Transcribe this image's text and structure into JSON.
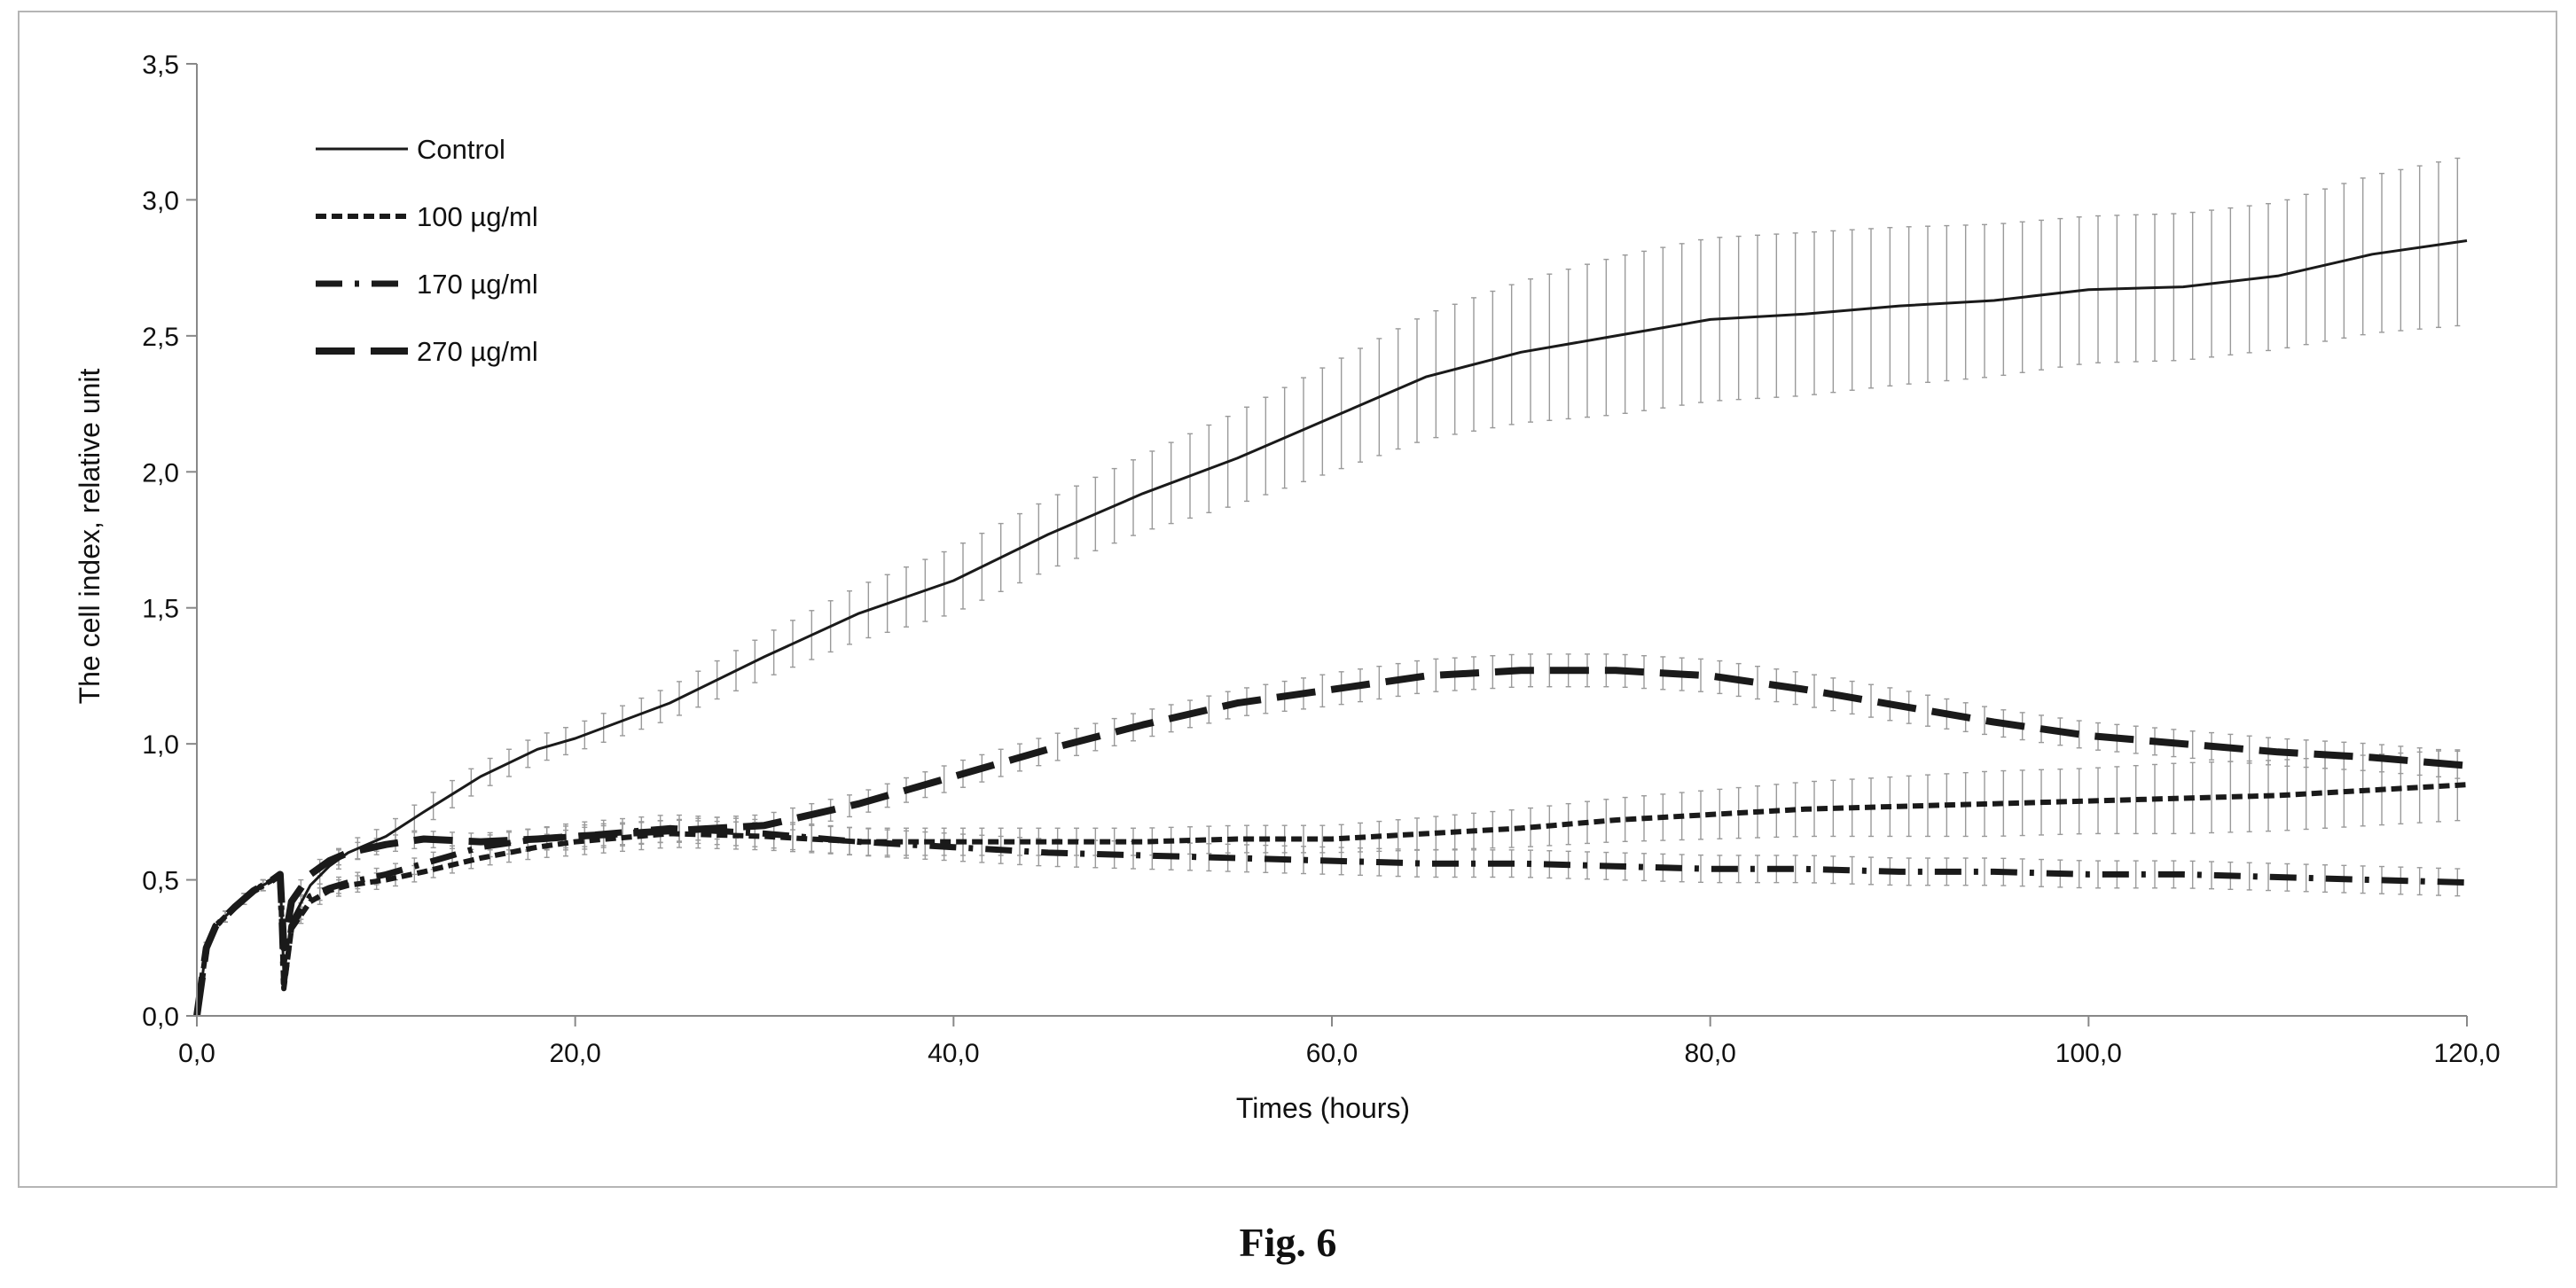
{
  "figure": {
    "caption": "Fig. 6"
  },
  "chart_data": {
    "type": "line",
    "title": "",
    "xlabel": "Times (hours)",
    "ylabel": "The cell index, relative unit",
    "xlim": [
      0,
      120
    ],
    "ylim": [
      0,
      3.5
    ],
    "xticks": [
      0,
      20,
      40,
      60,
      80,
      100,
      120
    ],
    "xtick_labels": [
      "0,0",
      "20,0",
      "40,0",
      "60,0",
      "80,0",
      "100,0",
      "120,0"
    ],
    "yticks": [
      0,
      0.5,
      1.0,
      1.5,
      2.0,
      2.5,
      3.0,
      3.5
    ],
    "ytick_labels": [
      "0,0",
      "0,5",
      "1,0",
      "1,5",
      "2,0",
      "2,5",
      "3,0",
      "3,5"
    ],
    "grid": false,
    "legend_position": "top-left",
    "error_bars": true,
    "series": [
      {
        "name": "Control",
        "style": "solid",
        "x": [
          0,
          0.5,
          1,
          2,
          3,
          4,
          4.4,
          4.6,
          5,
          6,
          7,
          8,
          10,
          12,
          15,
          18,
          20,
          25,
          30,
          35,
          40,
          45,
          50,
          55,
          60,
          65,
          70,
          75,
          80,
          85,
          90,
          95,
          100,
          105,
          110,
          115,
          120
        ],
        "y": [
          0,
          0.25,
          0.33,
          0.4,
          0.46,
          0.5,
          0.52,
          0.15,
          0.35,
          0.48,
          0.55,
          0.6,
          0.66,
          0.75,
          0.88,
          0.98,
          1.02,
          1.15,
          1.32,
          1.48,
          1.6,
          1.77,
          1.92,
          2.05,
          2.2,
          2.35,
          2.44,
          2.5,
          2.56,
          2.58,
          2.61,
          2.63,
          2.67,
          2.68,
          2.72,
          2.8,
          2.85
        ],
        "err": [
          0,
          0.02,
          0.02,
          0.02,
          0.02,
          0.02,
          0.02,
          0.05,
          0.03,
          0.03,
          0.03,
          0.04,
          0.04,
          0.05,
          0.05,
          0.05,
          0.05,
          0.06,
          0.08,
          0.1,
          0.12,
          0.13,
          0.14,
          0.17,
          0.2,
          0.23,
          0.26,
          0.29,
          0.3,
          0.3,
          0.29,
          0.28,
          0.27,
          0.27,
          0.27,
          0.29,
          0.31
        ]
      },
      {
        "name": "100 µg/ml",
        "style": "short-dash",
        "x": [
          0,
          0.5,
          1,
          2,
          3,
          4,
          4.4,
          4.6,
          5,
          6,
          7,
          8,
          10,
          12,
          15,
          18,
          20,
          25,
          30,
          35,
          40,
          45,
          50,
          55,
          60,
          65,
          70,
          75,
          80,
          85,
          90,
          95,
          100,
          105,
          110,
          115,
          120
        ],
        "y": [
          0,
          0.25,
          0.33,
          0.4,
          0.46,
          0.5,
          0.52,
          0.1,
          0.32,
          0.42,
          0.46,
          0.48,
          0.5,
          0.53,
          0.58,
          0.62,
          0.64,
          0.67,
          0.66,
          0.64,
          0.64,
          0.64,
          0.64,
          0.65,
          0.65,
          0.67,
          0.69,
          0.72,
          0.74,
          0.76,
          0.77,
          0.78,
          0.79,
          0.8,
          0.81,
          0.83,
          0.85
        ],
        "err": [
          0,
          0.02,
          0.02,
          0.02,
          0.02,
          0.02,
          0.02,
          0.05,
          0.03,
          0.03,
          0.03,
          0.03,
          0.03,
          0.03,
          0.03,
          0.04,
          0.05,
          0.05,
          0.05,
          0.05,
          0.05,
          0.05,
          0.05,
          0.05,
          0.05,
          0.06,
          0.07,
          0.08,
          0.09,
          0.1,
          0.11,
          0.12,
          0.12,
          0.13,
          0.13,
          0.13,
          0.13
        ]
      },
      {
        "name": "170 µg/ml",
        "style": "dash-dot",
        "x": [
          0,
          0.5,
          1,
          2,
          3,
          4,
          4.4,
          4.6,
          5,
          6,
          7,
          8,
          10,
          12,
          15,
          18,
          20,
          25,
          30,
          35,
          40,
          45,
          50,
          55,
          60,
          65,
          70,
          75,
          80,
          85,
          90,
          95,
          100,
          105,
          110,
          115,
          120
        ],
        "y": [
          0,
          0.25,
          0.33,
          0.4,
          0.46,
          0.5,
          0.52,
          0.12,
          0.33,
          0.44,
          0.47,
          0.49,
          0.52,
          0.56,
          0.62,
          0.65,
          0.66,
          0.69,
          0.67,
          0.64,
          0.62,
          0.6,
          0.59,
          0.58,
          0.57,
          0.56,
          0.56,
          0.55,
          0.54,
          0.54,
          0.53,
          0.53,
          0.52,
          0.52,
          0.51,
          0.5,
          0.49
        ],
        "err": [
          0,
          0.02,
          0.02,
          0.02,
          0.02,
          0.02,
          0.02,
          0.05,
          0.03,
          0.03,
          0.03,
          0.03,
          0.03,
          0.03,
          0.04,
          0.04,
          0.05,
          0.05,
          0.05,
          0.05,
          0.05,
          0.05,
          0.05,
          0.05,
          0.05,
          0.05,
          0.05,
          0.05,
          0.05,
          0.05,
          0.05,
          0.05,
          0.05,
          0.05,
          0.05,
          0.05,
          0.05
        ]
      },
      {
        "name": "270 µg/ml",
        "style": "long-dash",
        "x": [
          0,
          0.5,
          1,
          2,
          3,
          4,
          4.4,
          4.6,
          5,
          6,
          7,
          8,
          10,
          12,
          15,
          18,
          20,
          25,
          30,
          35,
          40,
          45,
          50,
          55,
          60,
          65,
          70,
          75,
          80,
          85,
          90,
          95,
          100,
          105,
          110,
          115,
          120
        ],
        "y": [
          0,
          0.25,
          0.33,
          0.4,
          0.46,
          0.5,
          0.52,
          0.25,
          0.42,
          0.52,
          0.57,
          0.6,
          0.63,
          0.65,
          0.64,
          0.65,
          0.66,
          0.68,
          0.7,
          0.78,
          0.88,
          0.98,
          1.07,
          1.15,
          1.2,
          1.25,
          1.27,
          1.27,
          1.25,
          1.2,
          1.14,
          1.08,
          1.03,
          1.0,
          0.97,
          0.95,
          0.92
        ],
        "err": [
          0,
          0.02,
          0.02,
          0.02,
          0.02,
          0.02,
          0.02,
          0.05,
          0.03,
          0.03,
          0.03,
          0.03,
          0.03,
          0.03,
          0.03,
          0.04,
          0.04,
          0.04,
          0.04,
          0.04,
          0.05,
          0.05,
          0.05,
          0.05,
          0.06,
          0.06,
          0.06,
          0.06,
          0.06,
          0.06,
          0.06,
          0.05,
          0.05,
          0.05,
          0.05,
          0.05,
          0.05
        ]
      }
    ]
  }
}
